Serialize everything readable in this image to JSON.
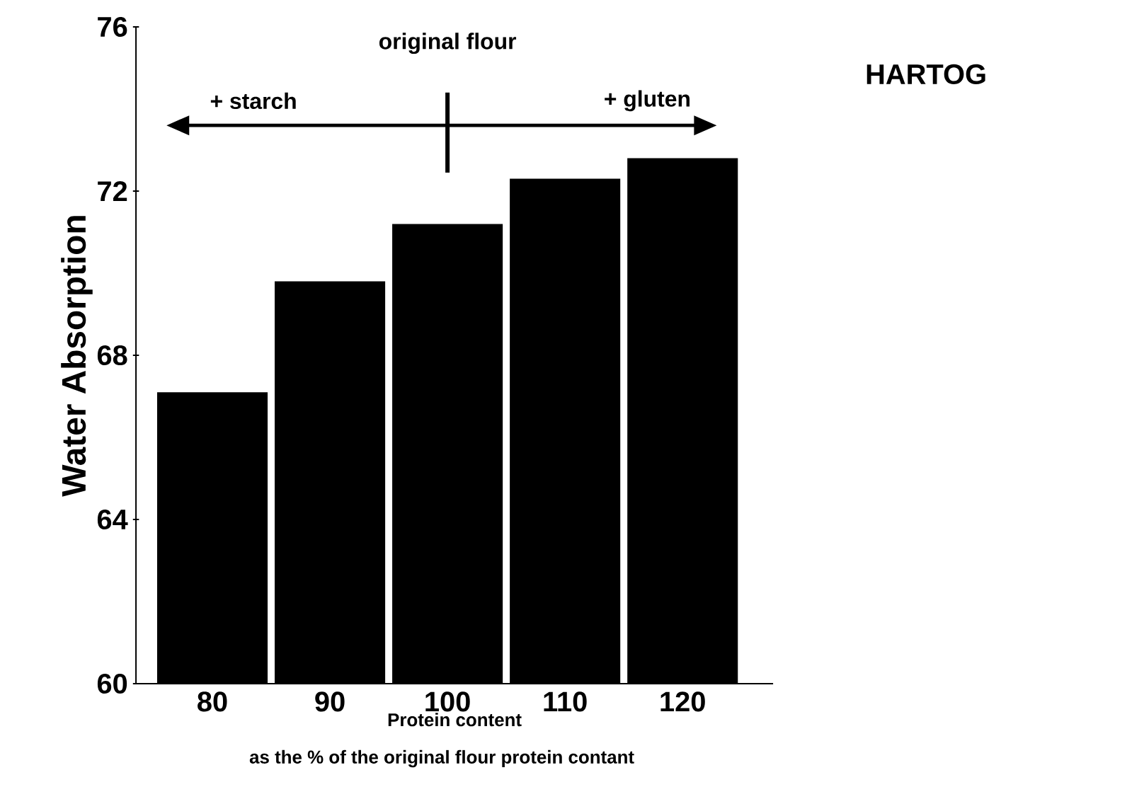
{
  "chart_data": {
    "type": "bar",
    "title": "HARTOG",
    "categories": [
      "80",
      "90",
      "100",
      "110",
      "120"
    ],
    "values": [
      67.1,
      69.8,
      71.2,
      72.3,
      72.8
    ],
    "color": "#000000",
    "ylim": [
      60,
      76
    ],
    "yticks": [
      60,
      64,
      68,
      72,
      76
    ],
    "xlabel": "Protein content",
    "ylabel": "Water Absorption",
    "annotations": [
      "as the % of the original flour protein contant",
      "original flour",
      "+ starch",
      "+ gluten"
    ],
    "grid": false
  }
}
